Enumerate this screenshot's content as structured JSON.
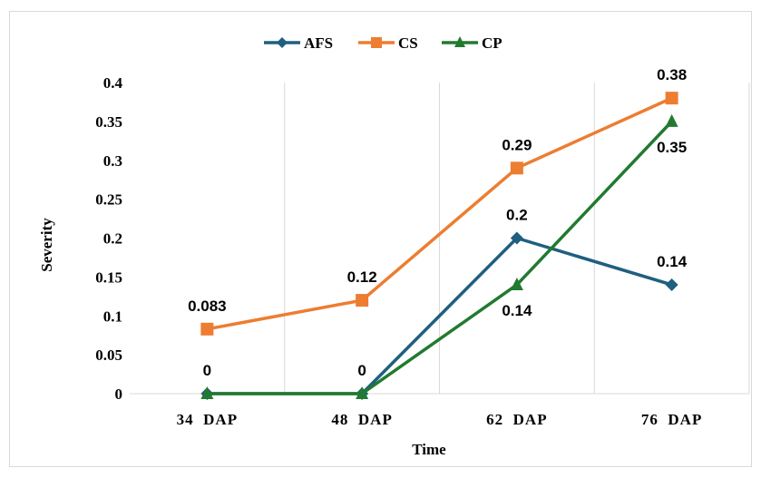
{
  "chart_data": {
    "type": "line",
    "categories": [
      "34  DAP",
      "48  DAP",
      "62  DAP",
      "76  DAP"
    ],
    "series": [
      {
        "name": "AFS",
        "values": [
          0,
          0,
          0.2,
          0.14
        ],
        "color": "#1f5f7f",
        "marker": "diamond"
      },
      {
        "name": "CS",
        "values": [
          0.083,
          0.12,
          0.29,
          0.38
        ],
        "color": "#ed7d31",
        "marker": "square"
      },
      {
        "name": "CP",
        "values": [
          0,
          0,
          0.14,
          0.35
        ],
        "color": "#217a30",
        "marker": "triangle"
      }
    ],
    "data_labels": [
      {
        "text": "0.083",
        "series": "CS",
        "index": 0,
        "pos": "above"
      },
      {
        "text": "0.12",
        "series": "CS",
        "index": 1,
        "pos": "above"
      },
      {
        "text": "0.29",
        "series": "CS",
        "index": 2,
        "pos": "above"
      },
      {
        "text": "0.38",
        "series": "CS",
        "index": 3,
        "pos": "above"
      },
      {
        "text": "0",
        "series": "AFS",
        "index": 0,
        "pos": "above"
      },
      {
        "text": "0",
        "series": "AFS",
        "index": 1,
        "pos": "above"
      },
      {
        "text": "0.2",
        "series": "AFS",
        "index": 2,
        "pos": "above"
      },
      {
        "text": "0.14",
        "series": "AFS",
        "index": 3,
        "pos": "above"
      },
      {
        "text": "0.14",
        "series": "CP",
        "index": 2,
        "pos": "below"
      },
      {
        "text": "0.35",
        "series": "CP",
        "index": 3,
        "pos": "below"
      }
    ],
    "title": "",
    "xlabel": "Time",
    "ylabel": "Severity",
    "ylim": [
      0,
      0.4
    ],
    "yticks": [
      "0",
      "0.05",
      "0.1",
      "0.15",
      "0.2",
      "0.25",
      "0.3",
      "0.35",
      "0.4"
    ],
    "ytick_values": [
      0,
      0.05,
      0.1,
      0.15,
      0.2,
      0.25,
      0.3,
      0.35,
      0.4
    ],
    "grid": "vertical",
    "legend": "top-center"
  }
}
